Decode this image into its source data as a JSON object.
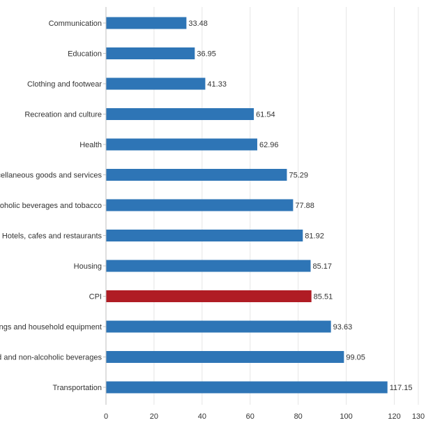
{
  "chart_data": {
    "type": "bar",
    "orientation": "horizontal",
    "categories": [
      "Communication",
      "Education",
      "Clothing and footwear",
      "Recreation and culture",
      "Health",
      "Miscellaneous goods and services",
      "Alcoholic beverages and tobacco",
      "Hotels, cafes and restaurants",
      "Housing",
      "CPI",
      "Furnishings and household equipment",
      "Food and non-alcoholic beverages",
      "Transportation"
    ],
    "values": [
      33.48,
      36.95,
      41.33,
      61.54,
      62.96,
      75.29,
      77.88,
      81.92,
      85.17,
      85.51,
      93.63,
      99.05,
      117.15
    ],
    "value_labels": [
      "33.48",
      "36.95",
      "41.33",
      "61.54",
      "62.96",
      "75.29",
      "77.88",
      "81.92",
      "85.17",
      "85.51",
      "93.63",
      "99.05",
      "117.15"
    ],
    "highlight_category": "CPI",
    "xlim": [
      0,
      130
    ],
    "xticks": [
      0,
      20,
      40,
      60,
      80,
      100,
      120,
      130
    ],
    "xtick_labels": [
      "0",
      "20",
      "40",
      "60",
      "80",
      "100",
      "120",
      "130"
    ],
    "gridlines": true,
    "legend": "none",
    "colors": {
      "bar": "#2e75b6",
      "highlight": "#b01c24",
      "grid": "#e6e6e6",
      "axis": "#bfbfbf",
      "text": "#333333"
    }
  }
}
